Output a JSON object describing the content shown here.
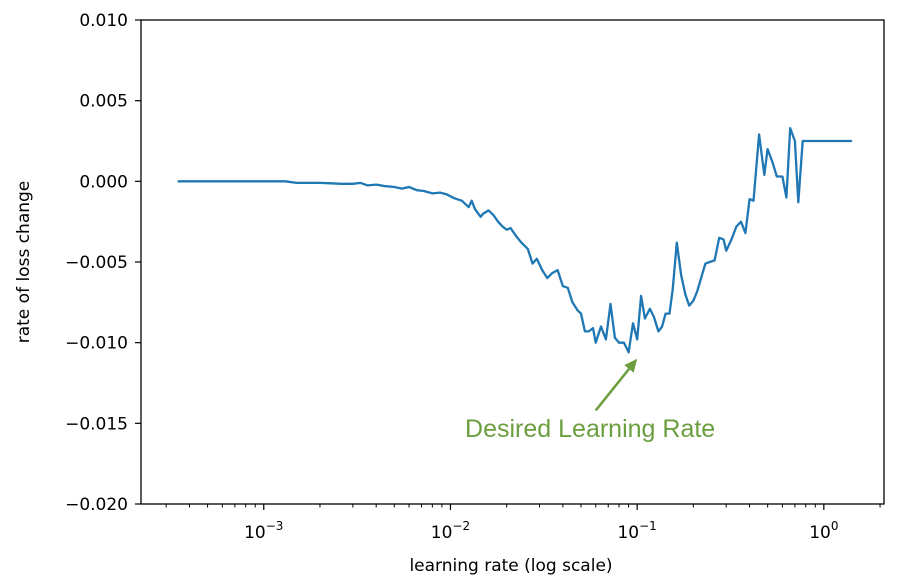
{
  "chart_data": {
    "type": "line",
    "title": "",
    "xlabel": "learning rate (log scale)",
    "ylabel": "rate of loss change",
    "x_scale": "log",
    "xlim": [
      0.00022,
      2.1
    ],
    "ylim": [
      -0.02,
      0.01
    ],
    "grid": false,
    "x_ticks": [
      {
        "value": 0.001,
        "base": "10",
        "exp": "−3"
      },
      {
        "value": 0.01,
        "base": "10",
        "exp": "−2"
      },
      {
        "value": 0.1,
        "base": "10",
        "exp": "−1"
      },
      {
        "value": 1,
        "base": "10",
        "exp": "0"
      }
    ],
    "y_ticks": [
      {
        "value": 0.01,
        "label": "0.010"
      },
      {
        "value": 0.005,
        "label": "0.005"
      },
      {
        "value": 0.0,
        "label": "0.000"
      },
      {
        "value": -0.005,
        "label": "−0.005"
      },
      {
        "value": -0.01,
        "label": "−0.010"
      },
      {
        "value": -0.015,
        "label": "−0.015"
      },
      {
        "value": -0.02,
        "label": "−0.020"
      }
    ],
    "series": [
      {
        "color": "#1f77b4",
        "x": [
          0.00035,
          0.0005,
          0.0007,
          0.001,
          0.0013,
          0.0015,
          0.0018,
          0.002,
          0.0023,
          0.0026,
          0.003,
          0.0033,
          0.0036,
          0.004,
          0.0045,
          0.005,
          0.0055,
          0.006,
          0.0066,
          0.0072,
          0.008,
          0.0088,
          0.0095,
          0.0105,
          0.0115,
          0.0125,
          0.013,
          0.0135,
          0.0145,
          0.015,
          0.016,
          0.017,
          0.018,
          0.019,
          0.02,
          0.021,
          0.0225,
          0.024,
          0.026,
          0.0275,
          0.029,
          0.031,
          0.033,
          0.035,
          0.0375,
          0.04,
          0.0425,
          0.045,
          0.048,
          0.05,
          0.0525,
          0.055,
          0.058,
          0.06,
          0.064,
          0.068,
          0.072,
          0.076,
          0.08,
          0.085,
          0.09,
          0.095,
          0.1,
          0.105,
          0.11,
          0.117,
          0.123,
          0.13,
          0.136,
          0.142,
          0.149,
          0.155,
          0.163,
          0.172,
          0.181,
          0.19,
          0.2,
          0.21,
          0.22,
          0.232,
          0.245,
          0.26,
          0.275,
          0.29,
          0.3,
          0.32,
          0.34,
          0.36,
          0.38,
          0.4,
          0.42,
          0.45,
          0.48,
          0.5,
          0.53,
          0.56,
          0.6,
          0.63,
          0.66,
          0.7,
          0.73,
          0.77,
          0.82,
          0.87,
          0.93,
          1.0,
          1.06,
          1.12,
          1.18,
          1.25,
          1.32,
          1.4
        ],
        "y": [
          0.0,
          0.0,
          0.0,
          0.0,
          0.0,
          -0.0001,
          -0.0001,
          -0.0001,
          -0.00012,
          -0.00015,
          -0.00015,
          -0.0001,
          -0.00025,
          -0.0002,
          -0.0003,
          -0.00035,
          -0.00045,
          -0.00035,
          -0.00055,
          -0.0006,
          -0.00075,
          -0.0007,
          -0.0008,
          -0.00105,
          -0.0012,
          -0.0016,
          -0.0012,
          -0.0017,
          -0.0022,
          -0.002,
          -0.0018,
          -0.0021,
          -0.0025,
          -0.0028,
          -0.003,
          -0.0029,
          -0.0034,
          -0.0038,
          -0.0042,
          -0.0051,
          -0.0048,
          -0.0055,
          -0.006,
          -0.0057,
          -0.0055,
          -0.0065,
          -0.0066,
          -0.0075,
          -0.008,
          -0.0082,
          -0.0093,
          -0.0093,
          -0.0091,
          -0.01,
          -0.009,
          -0.0098,
          -0.0076,
          -0.0097,
          -0.01,
          -0.01,
          -0.0106,
          -0.0088,
          -0.0098,
          -0.0071,
          -0.0085,
          -0.0079,
          -0.0084,
          -0.0093,
          -0.009,
          -0.0082,
          -0.0082,
          -0.0067,
          -0.0038,
          -0.0058,
          -0.007,
          -0.0077,
          -0.0074,
          -0.0068,
          -0.006,
          -0.0051,
          -0.005,
          -0.0049,
          -0.0035,
          -0.0036,
          -0.0043,
          -0.0036,
          -0.0028,
          -0.0025,
          -0.0032,
          -0.0011,
          -0.0012,
          0.0029,
          0.0004,
          0.002,
          0.0012,
          0.0003,
          0.0003,
          -0.001,
          0.0033,
          0.0025,
          -0.0013,
          0.0025,
          0.0025,
          0.0025,
          0.0025,
          0.0025,
          0.0025,
          0.0025,
          0.0025,
          0.0025,
          0.0025,
          0.0025
        ]
      }
    ],
    "annotations": [
      {
        "text": "Desired Learning Rate",
        "color": "#6b9e3f",
        "text_x": 0.056,
        "text_y": -0.0153,
        "arrow_from": [
          0.06,
          -0.0142
        ],
        "arrow_to": [
          0.1,
          -0.011
        ]
      }
    ]
  }
}
